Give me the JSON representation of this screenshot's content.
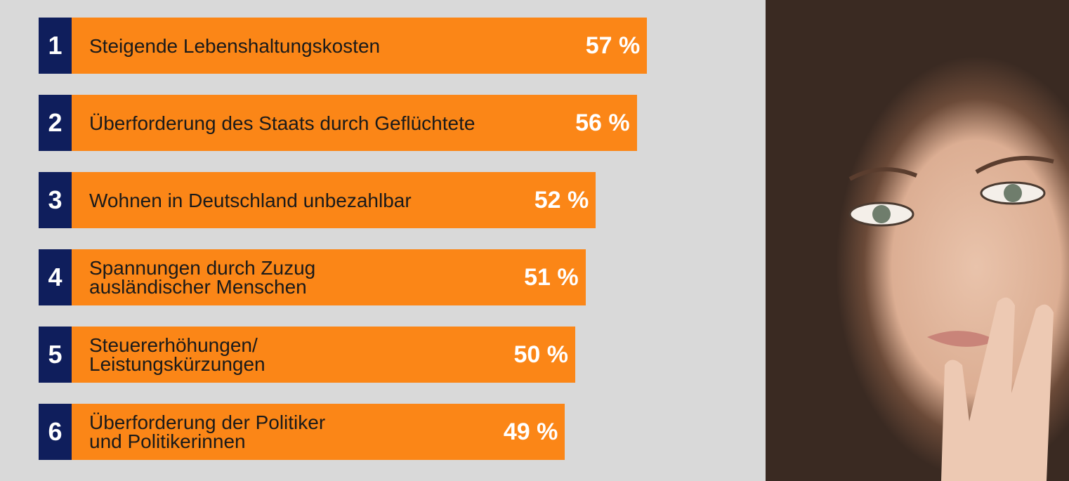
{
  "chart_data": {
    "type": "bar",
    "ranks": [
      "1",
      "2",
      "3",
      "4",
      "5",
      "6"
    ],
    "categories": [
      "Steigende Lebenshaltungskosten",
      "Überforderung des Staats durch Geflüchtete",
      "Wohnen in Deutschland unbezahlbar",
      "Spannungen durch Zuzug\nausländischer Menschen",
      "Steuererhöhungen/\nLeistungskürzungen",
      "Überforderung der Politiker\nund Politikerinnen"
    ],
    "values": [
      57,
      56,
      52,
      51,
      50,
      49
    ],
    "value_labels": [
      "57 %",
      "56 %",
      "52 %",
      "51 %",
      "50 %",
      "49 %"
    ],
    "color": "#fb8617",
    "rank_color": "#0f1e5c"
  }
}
